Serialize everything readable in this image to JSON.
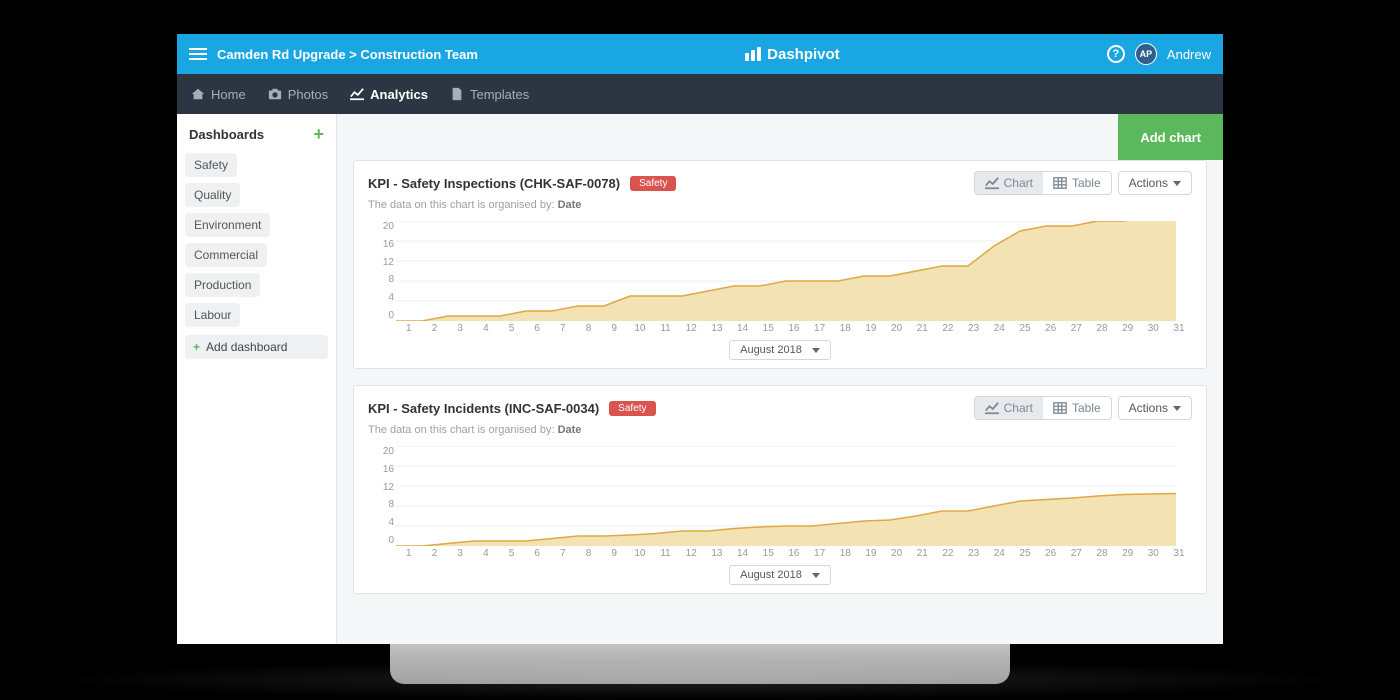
{
  "colors": {
    "topbar": "#19a6e2",
    "navbar": "#2b3642",
    "accent_green": "#5cb85c",
    "tag_red": "#d9534f",
    "chart_fill": "#f3e2b3",
    "chart_stroke": "#dfa844",
    "grid": "#ececec"
  },
  "header": {
    "breadcrumb": "Camden Rd Upgrade > Construction Team",
    "product": "Dashpivot",
    "user_initials": "AP",
    "user_name": "Andrew"
  },
  "nav": {
    "items": [
      {
        "label": "Home"
      },
      {
        "label": "Photos"
      },
      {
        "label": "Analytics",
        "active": true
      },
      {
        "label": "Templates"
      }
    ]
  },
  "sidebar": {
    "title": "Dashboards",
    "items": [
      "Safety",
      "Quality",
      "Environment",
      "Commercial",
      "Production",
      "Labour"
    ],
    "add_label": "Add dashboard"
  },
  "main": {
    "add_chart_label": "Add chart",
    "toggle_chart": "Chart",
    "toggle_table": "Table",
    "actions_label": "Actions",
    "organised_prefix": "The data on this chart is organised by: ",
    "organised_by": "Date",
    "date_label": "August 2018",
    "charts": [
      {
        "title": "KPI - Safety Inspections (CHK-SAF-0078)",
        "tag": "Safety",
        "type": "area",
        "yticks": [
          20,
          16,
          12,
          8,
          4,
          0
        ],
        "ylim": [
          0,
          20
        ],
        "x_labels": [
          "1",
          "2",
          "3",
          "4",
          "5",
          "6",
          "7",
          "8",
          "9",
          "10",
          "11",
          "12",
          "13",
          "14",
          "15",
          "16",
          "17",
          "18",
          "19",
          "20",
          "21",
          "22",
          "23",
          "24",
          "25",
          "26",
          "27",
          "28",
          "29",
          "30",
          "31"
        ],
        "values": [
          0,
          0,
          1,
          1,
          1,
          2,
          2,
          3,
          3,
          5,
          5,
          5,
          6,
          7,
          7,
          8,
          8,
          8,
          9,
          9,
          10,
          11,
          11,
          15,
          18,
          19,
          19,
          20,
          20,
          21,
          21
        ],
        "fill": "#f3e2b3",
        "stroke": "#dfa844",
        "grid": "#ececec"
      },
      {
        "title": "KPI - Safety Incidents (INC-SAF-0034)",
        "tag": "Safety",
        "type": "area",
        "yticks": [
          20,
          16,
          12,
          8,
          4,
          0
        ],
        "ylim": [
          0,
          20
        ],
        "x_labels": [
          "1",
          "2",
          "3",
          "4",
          "5",
          "6",
          "7",
          "8",
          "9",
          "10",
          "11",
          "12",
          "13",
          "14",
          "15",
          "16",
          "17",
          "18",
          "19",
          "20",
          "21",
          "22",
          "23",
          "24",
          "25",
          "26",
          "27",
          "28",
          "29",
          "30",
          "31"
        ],
        "values": [
          0,
          0,
          0.5,
          1,
          1,
          1,
          1.5,
          2,
          2,
          2.2,
          2.5,
          3,
          3,
          3.5,
          3.8,
          4,
          4,
          4.5,
          5,
          5.2,
          6,
          7,
          7,
          8,
          9,
          9.3,
          9.6,
          10,
          10.3,
          10.4,
          10.5
        ],
        "fill": "#f3e2b3",
        "stroke": "#dfa844",
        "grid": "#ececec"
      }
    ]
  }
}
